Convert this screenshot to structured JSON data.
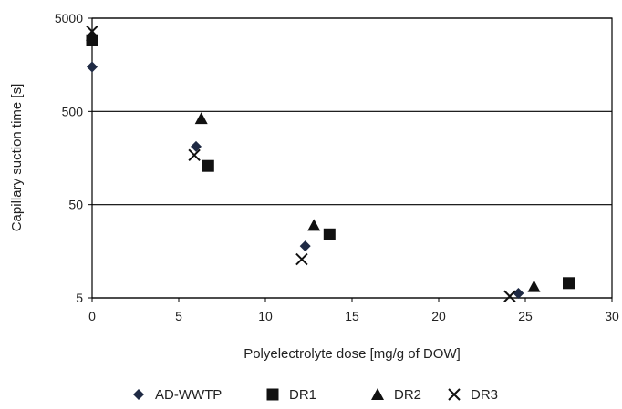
{
  "chart_data": {
    "type": "scatter",
    "xlabel": "Polyelectrolyte dose [mg/g of DOW]",
    "ylabel": "Capillary suction time [s]",
    "x_ticks": [
      "0",
      "5",
      "10",
      "15",
      "20",
      "25",
      "30"
    ],
    "y_ticks": [
      "5",
      "50",
      "500",
      "5000"
    ],
    "xlim": [
      0,
      30
    ],
    "ylim": [
      5,
      5000
    ],
    "y_scale": "log",
    "grid": "horizontal",
    "legend_position": "bottom",
    "series": [
      {
        "name": "AD-WWTP",
        "marker": "diamond",
        "color": "#1f2a44",
        "points": [
          [
            0,
            1500
          ],
          [
            6.0,
            210
          ],
          [
            12.3,
            18
          ],
          [
            24.6,
            5.6
          ]
        ]
      },
      {
        "name": "DR1",
        "marker": "square",
        "color": "#111111",
        "points": [
          [
            0,
            2900
          ],
          [
            6.7,
            130
          ],
          [
            13.7,
            24
          ],
          [
            27.5,
            7.2
          ]
        ]
      },
      {
        "name": "DR2",
        "marker": "triangle",
        "color": "#111111",
        "points": [
          [
            0,
            3300
          ],
          [
            6.3,
            420
          ],
          [
            12.8,
            30
          ],
          [
            25.5,
            6.6
          ]
        ]
      },
      {
        "name": "DR3",
        "marker": "x",
        "color": "#111111",
        "points": [
          [
            0,
            3600
          ],
          [
            5.9,
            170
          ],
          [
            12.1,
            13
          ],
          [
            24.1,
            5.2
          ]
        ]
      }
    ]
  }
}
